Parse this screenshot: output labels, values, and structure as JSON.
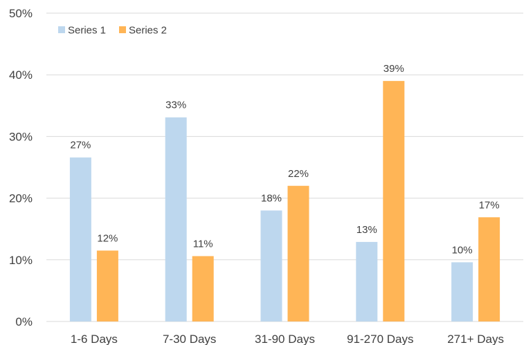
{
  "chart_data": {
    "type": "bar",
    "categories": [
      "1-6 Days",
      "7-30 Days",
      "31-90 Days",
      "91-270 Days",
      "271+ Days"
    ],
    "series": [
      {
        "name": "Series 1",
        "color": "#BDD7EE",
        "values": [
          26.6,
          33.1,
          18.0,
          12.9,
          9.6
        ],
        "labels": [
          "27%",
          "33%",
          "18%",
          "13%",
          "10%"
        ]
      },
      {
        "name": "Series 2",
        "color": "#FFB556",
        "values": [
          11.5,
          10.6,
          22.0,
          39.0,
          16.9
        ],
        "labels": [
          "12%",
          "11%",
          "22%",
          "39%",
          "17%"
        ]
      }
    ],
    "ylim": [
      0,
      50
    ],
    "yticks": [
      "0%",
      "10%",
      "20%",
      "30%",
      "40%",
      "50%"
    ],
    "ytick_values": [
      0,
      10,
      20,
      30,
      40,
      50
    ],
    "grid": true,
    "gridColor": "#D9D9D9",
    "legend": "top-left",
    "title": "",
    "xlabel": "",
    "ylabel": ""
  }
}
